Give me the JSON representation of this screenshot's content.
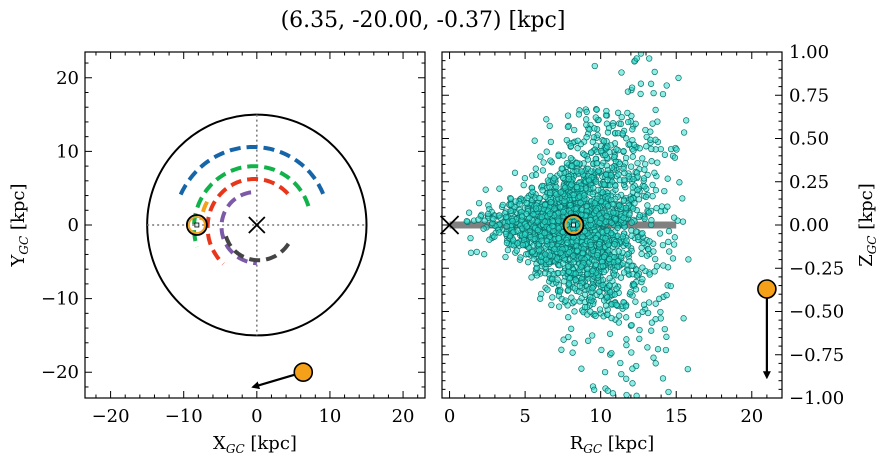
{
  "title": "(6.35, -20.00, -0.37) [kpc]",
  "chart_data": [
    {
      "type": "scatter",
      "panel": "left",
      "xlabel": "X",
      "xlabel_sub": "GC",
      "xlabel_unit": "[kpc]",
      "ylabel": "Y",
      "ylabel_sub": "GC",
      "ylabel_unit": "[kpc]",
      "xlim": [
        -23.5,
        23.0
      ],
      "ylim": [
        -23.5,
        23.5
      ],
      "xticks": [
        -20,
        -10,
        0,
        10,
        20
      ],
      "xtick_labels": [
        "−20",
        "−10",
        "0",
        "10",
        "20"
      ],
      "yticks": [
        -20,
        -10,
        0,
        10,
        20
      ],
      "ytick_labels": [
        "−20",
        "−10",
        "0",
        "10",
        "20"
      ],
      "galaxy_circle_radius": 15,
      "galactic_center": [
        0,
        0
      ],
      "sun_position": [
        -8.2,
        0
      ],
      "object_position": [
        6.35,
        -20.0
      ],
      "object_arrow_to": [
        -0.5,
        -22.0
      ],
      "arms": [
        {
          "color": "#1565a8",
          "radius": 10.0,
          "theta_deg": [
            25,
            162
          ]
        },
        {
          "color": "#11b24a",
          "radius": 7.5,
          "theta_deg": [
            20,
            200
          ]
        },
        {
          "color": "#e8361b",
          "radius": 6.0,
          "theta_deg": [
            45,
            230
          ]
        },
        {
          "color": "#f5a019",
          "radius": 7.5,
          "theta_deg": [
            155,
            175
          ]
        },
        {
          "color": "#7d5aa8",
          "radius": 4.5,
          "theta_deg": [
            100,
            270
          ]
        },
        {
          "color": "#444444",
          "radius": 4.5,
          "theta_deg": [
            200,
            330
          ]
        }
      ],
      "colors": {
        "sun_fill": "#f5a019",
        "object_fill": "#f5a019"
      }
    },
    {
      "type": "scatter",
      "panel": "right",
      "xlabel": "R",
      "xlabel_sub": "GC",
      "xlabel_unit": "[kpc]",
      "ylabel": "Z",
      "ylabel_sub": "GC",
      "ylabel_unit": "[kpc]",
      "xlim": [
        -0.5,
        22.0
      ],
      "ylim": [
        -1.0,
        1.0
      ],
      "xticks": [
        0,
        5,
        10,
        15,
        20
      ],
      "xtick_labels": [
        "0",
        "5",
        "10",
        "15",
        "20"
      ],
      "yticks": [
        1.0,
        0.75,
        0.5,
        0.25,
        0.0,
        -0.25,
        -0.5,
        -0.75,
        -1.0
      ],
      "ytick_labels": [
        "1.00",
        "0.75",
        "0.50",
        "0.25",
        "0.00",
        "−0.25",
        "−0.50",
        "−0.75",
        "−1.00"
      ],
      "disk_band": {
        "x": [
          0,
          15
        ],
        "z": 0.0,
        "color": "#808080"
      },
      "galactic_center": [
        0,
        0
      ],
      "sun_position": [
        8.2,
        0.0
      ],
      "object_position": [
        21.0,
        -0.37
      ],
      "object_arrow_to": [
        21.0,
        -0.88
      ],
      "stars_color": "#2fe0d0",
      "stars_edge": "#0a6e68",
      "stars_count": 2200,
      "stars_distribution": {
        "R_center": 8.7,
        "R_spread": 2.5,
        "z_spread_base": 0.06,
        "z_spread_slope": 0.035
      },
      "colors": {
        "sun_fill": "#f5a019",
        "object_fill": "#f5a019"
      }
    }
  ]
}
